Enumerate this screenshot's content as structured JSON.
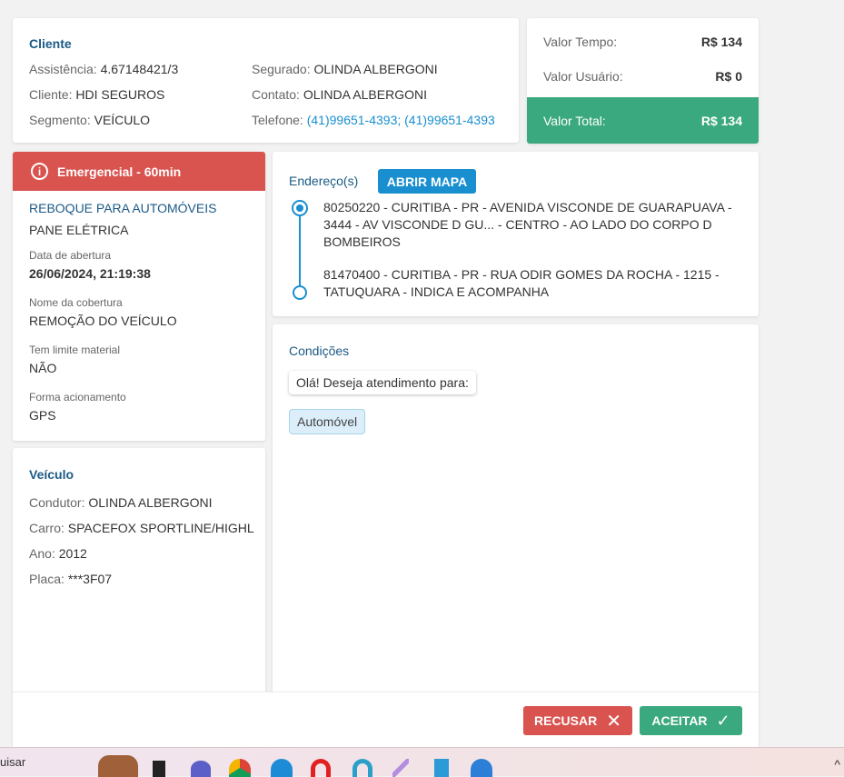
{
  "cliente": {
    "title": "Cliente",
    "assistencia_label": "Assistência:",
    "assistencia": "4.67148421/3",
    "cliente_label": "Cliente:",
    "cliente": "HDI SEGUROS",
    "segmento_label": "Segmento:",
    "segmento": "VEÍCULO",
    "segurado_label": "Segurado:",
    "segurado": "OLINDA ALBERGONI",
    "contato_label": "Contato:",
    "contato": "OLINDA ALBERGONI",
    "telefone_label": "Telefone:",
    "telefone": "(41)99651-4393; (41)99651-4393"
  },
  "valores": {
    "tempo_label": "Valor Tempo:",
    "tempo": "R$ 134",
    "usuario_label": "Valor Usuário:",
    "usuario": "R$ 0",
    "total_label": "Valor Total:",
    "total": "R$ 134",
    "total_color": "#3aa97f"
  },
  "servico": {
    "badge": "Emergencial - 60min",
    "badge_color": "#d9534f",
    "tipo": "REBOQUE PARA AUTOMÓVEIS",
    "motivo": "PANE ELÉTRICA",
    "abertura_label": "Data de abertura",
    "abertura": "26/06/2024, 21:19:38",
    "cobertura_label": "Nome da cobertura",
    "cobertura": "REMOÇÃO DO VEÍCULO",
    "limite_label": "Tem limite material",
    "limite": "NÃO",
    "forma_label": "Forma acionamento",
    "forma": "GPS"
  },
  "veiculo": {
    "title": "Veículo",
    "condutor_label": "Condutor:",
    "condutor": "OLINDA ALBERGONI",
    "carro_label": "Carro:",
    "carro": "SPACEFOX SPORTLINE/HIGHL",
    "ano_label": "Ano:",
    "ano": "2012",
    "placa_label": "Placa:",
    "placa": "***3F07"
  },
  "enderecos": {
    "title": "Endereço(s)",
    "map_button": "ABRIR MAPA",
    "origem": "80250220 - CURITIBA - PR - AVENIDA VISCONDE DE GUARAPUAVA - 3444 - AV VISCONDE D GU... - CENTRO - AO LADO DO CORPO D BOMBEIROS",
    "destino": "81470400 - CURITIBA - PR - RUA ODIR GOMES DA ROCHA - 1215 - TATUQUARA - INDICA E ACOMPANHA"
  },
  "condicoes": {
    "title": "Condições",
    "pergunta": "Olá! Deseja atendimento para:",
    "resposta": "Automóvel"
  },
  "footer": {
    "recusar": "RECUSAR",
    "aceitar": "ACEITAR"
  },
  "taskbar": {
    "search": "uisar"
  }
}
